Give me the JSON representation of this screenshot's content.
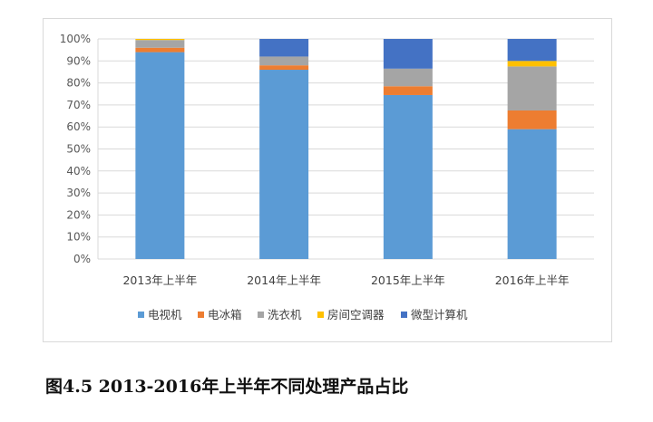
{
  "chart_data": {
    "type": "bar",
    "stacked": true,
    "categories": [
      "2013年上半年",
      "2014年上半年",
      "2015年上半年",
      "2016年上半年"
    ],
    "series": [
      {
        "name": "电视机",
        "color": "#5b9bd5",
        "values": [
          94,
          86,
          74.5,
          59
        ]
      },
      {
        "name": "电冰箱",
        "color": "#ed7d31",
        "values": [
          2,
          2,
          4,
          8.5
        ]
      },
      {
        "name": "洗衣机",
        "color": "#a5a5a5",
        "values": [
          3.5,
          4,
          8,
          20
        ]
      },
      {
        "name": "房间空调器",
        "color": "#ffc000",
        "values": [
          0.5,
          0,
          0,
          2.5
        ]
      },
      {
        "name": "微型计算机",
        "color": "#4472c4",
        "values": [
          0,
          8,
          13.5,
          10
        ]
      }
    ],
    "yticks": [
      "0%",
      "10%",
      "20%",
      "30%",
      "40%",
      "50%",
      "60%",
      "70%",
      "80%",
      "90%",
      "100%"
    ],
    "ylim": [
      0,
      100
    ],
    "grid": true,
    "legend": "bottom"
  },
  "caption": "图4.5 2013-2016年上半年不同处理产品占比"
}
